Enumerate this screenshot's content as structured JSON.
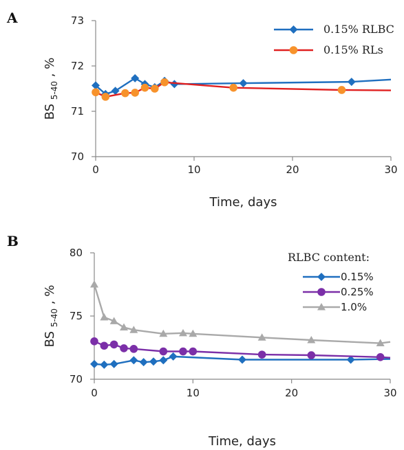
{
  "chart_data": [
    {
      "panel_label": "A",
      "type": "line",
      "xlabel": "Time, days",
      "ylabel_main": "BS",
      "ylabel_sub": "5-40",
      "ylabel_unit": ", %",
      "xlim": [
        0,
        30
      ],
      "ylim": [
        70,
        73
      ],
      "xticks": [
        0,
        10,
        20,
        30
      ],
      "yticks": [
        70,
        71,
        72,
        73
      ],
      "legend_title": "",
      "legend_position": "top-right",
      "series": [
        {
          "name": "0.15% RLBC",
          "color": "#1f6fbf",
          "marker": "diamond",
          "x": [
            0,
            1,
            2,
            4,
            5,
            6,
            7,
            8,
            15,
            26,
            30
          ],
          "y": [
            71.57,
            71.38,
            71.45,
            71.73,
            71.6,
            71.53,
            71.67,
            71.6,
            71.62,
            71.65,
            71.7
          ],
          "marker_mask": [
            true,
            true,
            true,
            true,
            true,
            true,
            true,
            true,
            true,
            true,
            false
          ]
        },
        {
          "name": "0.15% RLs",
          "color": "#e02020",
          "marker_color": "#f7922b",
          "marker": "circle",
          "x": [
            0,
            1,
            3,
            4,
            5,
            6,
            7,
            14,
            25,
            30
          ],
          "y": [
            71.42,
            71.32,
            71.4,
            71.41,
            71.52,
            71.5,
            71.64,
            71.52,
            71.47,
            71.46
          ],
          "marker_mask": [
            true,
            true,
            true,
            true,
            true,
            true,
            true,
            true,
            true,
            false
          ]
        }
      ]
    },
    {
      "panel_label": "B",
      "type": "line",
      "xlabel": "Time, days",
      "ylabel_main": "BS",
      "ylabel_sub": "5-40",
      "ylabel_unit": ", %",
      "xlim": [
        0,
        30
      ],
      "ylim": [
        70,
        80
      ],
      "xticks": [
        0,
        10,
        20,
        30
      ],
      "yticks": [
        70,
        75,
        80
      ],
      "legend_title": "RLBC content:",
      "legend_position": "top-right",
      "series": [
        {
          "name": "0.15%",
          "color": "#1f6fbf",
          "marker": "diamond",
          "x": [
            0,
            1,
            2,
            4,
            5,
            6,
            7,
            8,
            15,
            26,
            30
          ],
          "y": [
            71.2,
            71.15,
            71.2,
            71.5,
            71.35,
            71.4,
            71.5,
            71.8,
            71.55,
            71.55,
            71.6
          ],
          "marker_mask": [
            true,
            true,
            true,
            true,
            true,
            true,
            true,
            true,
            true,
            true,
            false
          ]
        },
        {
          "name": "0.25%",
          "color": "#7b2fa8",
          "marker": "circle",
          "x": [
            0,
            1,
            2,
            3,
            4,
            7,
            9,
            10,
            17,
            22,
            29,
            30
          ],
          "y": [
            73.0,
            72.65,
            72.75,
            72.45,
            72.4,
            72.2,
            72.2,
            72.2,
            71.95,
            71.9,
            71.75,
            71.7
          ],
          "marker_mask": [
            true,
            true,
            true,
            true,
            true,
            true,
            true,
            true,
            true,
            true,
            true,
            false
          ]
        },
        {
          "name": "1.0%",
          "color": "#a9a9a9",
          "marker": "triangle",
          "x": [
            0,
            1,
            2,
            3,
            4,
            7,
            9,
            10,
            17,
            22,
            29,
            30
          ],
          "y": [
            77.5,
            74.9,
            74.6,
            74.1,
            73.9,
            73.6,
            73.65,
            73.6,
            73.3,
            73.1,
            72.85,
            72.95
          ],
          "marker_mask": [
            true,
            true,
            true,
            true,
            true,
            true,
            true,
            true,
            true,
            true,
            true,
            false
          ]
        }
      ]
    }
  ]
}
